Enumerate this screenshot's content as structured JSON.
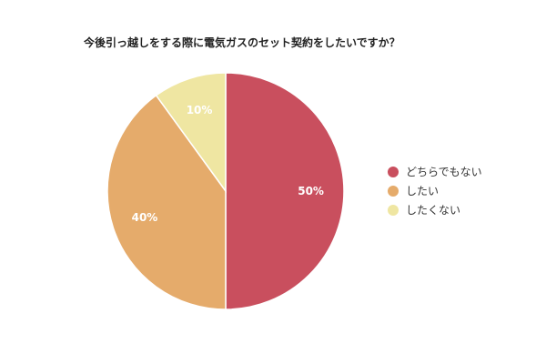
{
  "chart_data": {
    "type": "pie",
    "title": "今後引っ越しをする際に電気ガスのセット契約をしたいですか？",
    "categories": [
      "どちらでもない",
      "したい",
      "したくない"
    ],
    "values": [
      50,
      40,
      10
    ],
    "value_labels": [
      "50%",
      "40%",
      "10%"
    ],
    "colors": [
      "#c94f5e",
      "#e5ab6b",
      "#efe6a2"
    ],
    "legend_position": "right"
  }
}
